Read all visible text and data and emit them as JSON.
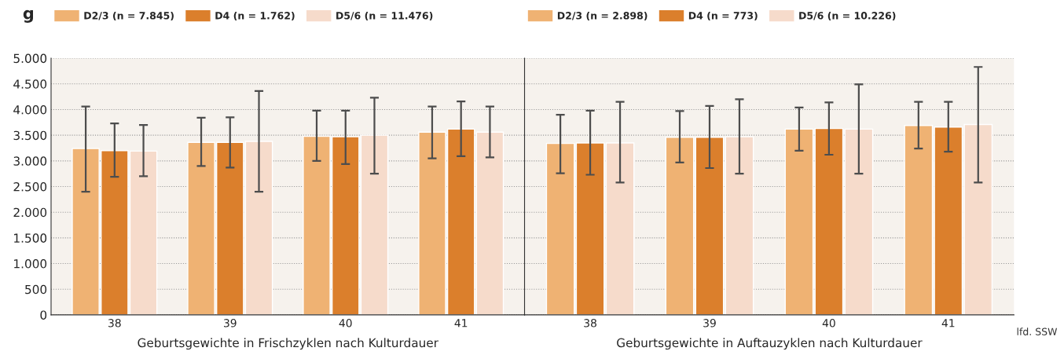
{
  "chart_data": [
    {
      "type": "bar",
      "ylabel": "g",
      "xlabel": "Geburtsgewichte in Frischzyklen nach Kulturdauer",
      "categories": [
        "38",
        "39",
        "40",
        "41"
      ],
      "series": [
        {
          "name": "D2/3 (n = 7.845)",
          "color": "#efb273",
          "values": [
            3240,
            3360,
            3480,
            3560
          ],
          "errors": [
            [
              2400,
              4060
            ],
            [
              2900,
              3840
            ],
            [
              3000,
              3980
            ],
            [
              3050,
              4060
            ]
          ]
        },
        {
          "name": "D4 (n = 1.762)",
          "color": "#db7f2c",
          "values": [
            3200,
            3360,
            3470,
            3620
          ],
          "errors": [
            [
              2690,
              3730
            ],
            [
              2870,
              3850
            ],
            [
              2940,
              3980
            ],
            [
              3090,
              4160
            ]
          ]
        },
        {
          "name": "D5/6 (n = 11.476)",
          "color": "#f6dbcb",
          "values": [
            3190,
            3380,
            3500,
            3560
          ],
          "errors": [
            [
              2700,
              3700
            ],
            [
              2400,
              4360
            ],
            [
              2750,
              4230
            ],
            [
              3070,
              4060
            ]
          ]
        }
      ],
      "ylim": [
        0,
        5000
      ],
      "yticks": [
        0,
        {
          "value": 500,
          "label": "500"
        },
        {
          "value": 1000,
          "label": "1.000"
        },
        {
          "value": 1500,
          "label": "1.500"
        },
        {
          "value": 2000,
          "label": "2.000"
        },
        {
          "value": 2500,
          "label": "2.500"
        },
        {
          "value": 3000,
          "label": "3.000"
        },
        {
          "value": 3500,
          "label": "3.500"
        },
        {
          "value": 4000,
          "label": "4.000"
        },
        {
          "value": 4500,
          "label": "4.500"
        },
        {
          "value": 5000,
          "label": "5.000"
        }
      ],
      "grid": "y",
      "legend": "top left"
    },
    {
      "type": "bar",
      "xlabel": "Geburtsgewichte in Auftauzyklen nach Kulturdauer",
      "categories": [
        "38",
        "39",
        "40",
        "41"
      ],
      "series": [
        {
          "name": "D2/3 (n = 2.898)",
          "color": "#efb273",
          "values": [
            3340,
            3460,
            3620,
            3690
          ],
          "errors": [
            [
              2760,
              3900
            ],
            [
              2970,
              3970
            ],
            [
              3200,
              4040
            ],
            [
              3240,
              4150
            ]
          ]
        },
        {
          "name": "D4 (n = 773)",
          "color": "#db7f2c",
          "values": [
            3350,
            3460,
            3630,
            3660
          ],
          "errors": [
            [
              2730,
              3980
            ],
            [
              2860,
              4070
            ],
            [
              3120,
              4140
            ],
            [
              3180,
              4150
            ]
          ]
        },
        {
          "name": "D5/6 (n = 10.226)",
          "color": "#f6dbcb",
          "values": [
            3350,
            3470,
            3620,
            3710
          ],
          "errors": [
            [
              2580,
              4150
            ],
            [
              2750,
              4200
            ],
            [
              2750,
              4490
            ],
            [
              2580,
              4830
            ]
          ]
        }
      ],
      "ylim": [
        0,
        5000
      ],
      "tick_labels": "x",
      "grid": "y",
      "legend": "top left",
      "annotations": [
        "lfd. SSW"
      ]
    }
  ]
}
